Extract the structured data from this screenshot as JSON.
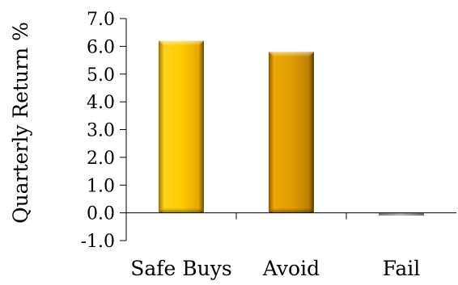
{
  "chart_data": {
    "type": "bar",
    "title": "",
    "xlabel": "",
    "ylabel": "Quarterly Return %",
    "categories": [
      "Safe Buys",
      "Avoid",
      "Fail"
    ],
    "values": [
      6.2,
      5.8,
      -0.1
    ],
    "ylim": [
      -1.0,
      7.0
    ],
    "ytick_values": [
      -1.0,
      0.0,
      1.0,
      2.0,
      3.0,
      4.0,
      5.0,
      6.0,
      7.0
    ],
    "yticks": [
      "-1.0",
      "0.0",
      "1.0",
      "2.0",
      "3.0",
      "4.0",
      "5.0",
      "6.0",
      "7.0"
    ],
    "grid": false,
    "legend": "none",
    "colors": {
      "Safe Buys": "#f2b800",
      "Avoid": "#d99600",
      "Fail": "#a9a9a9"
    }
  }
}
